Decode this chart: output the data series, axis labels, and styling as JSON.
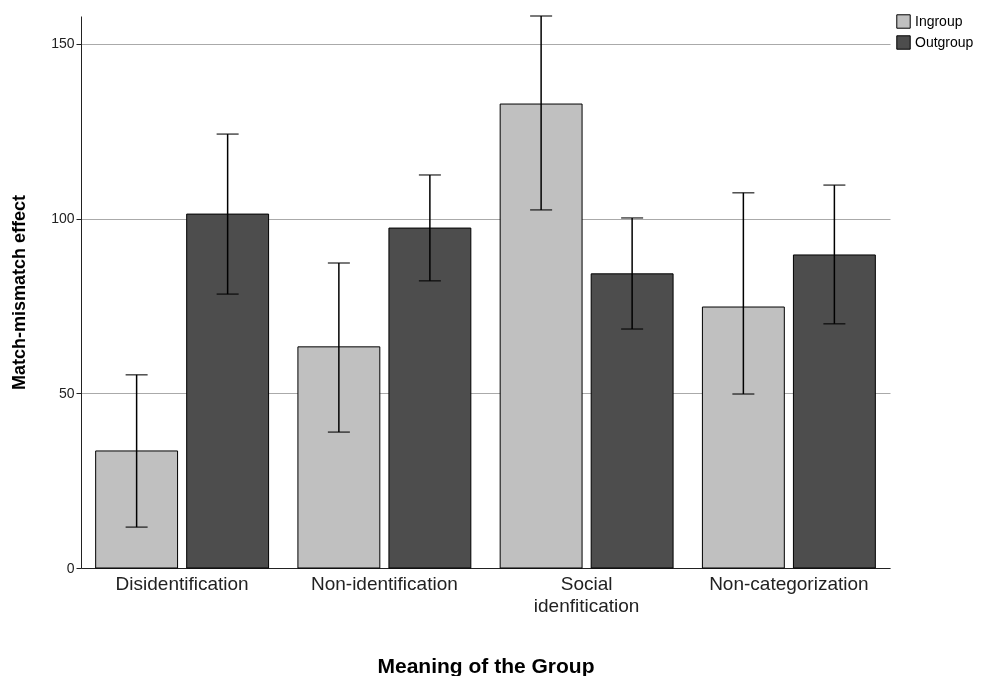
{
  "chart_data": {
    "type": "bar",
    "xlabel": "Meaning of the Group",
    "ylabel": "Match-mismatch effect",
    "categories": [
      "Disidentification",
      "Non-identification",
      "Social idenfitication",
      "Non-categorization"
    ],
    "series": [
      {
        "name": "Ingroup",
        "color": "#c0c0c0",
        "values": [
          33.5,
          63.3,
          132.8,
          74.7
        ],
        "errors": [
          [
            11.7,
            55.3
          ],
          [
            38.9,
            87.3
          ],
          [
            102.5,
            158
          ],
          [
            49.8,
            107.4
          ]
        ]
      },
      {
        "name": "Outgroup",
        "color": "#4d4d4d",
        "values": [
          101.3,
          97.3,
          84.2,
          89.6
        ],
        "errors": [
          [
            78.4,
            124.2
          ],
          [
            82.2,
            112.5
          ],
          [
            68.4,
            100.2
          ],
          [
            69.9,
            109.6
          ]
        ]
      }
    ],
    "ylim": [
      0,
      158
    ],
    "yticks": [
      0,
      50,
      100,
      150
    ],
    "grid": "y",
    "legend": "top right"
  }
}
